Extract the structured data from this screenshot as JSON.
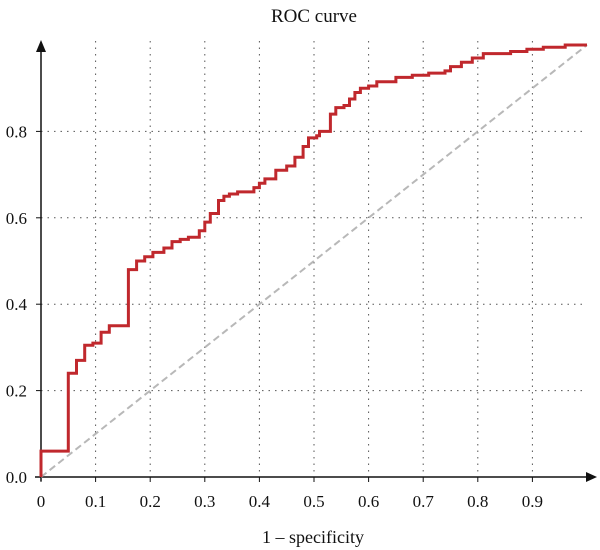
{
  "chart_data": {
    "type": "line",
    "title": "ROC curve",
    "xlabel": "1 – specificity",
    "ylabel": "",
    "xlim": [
      0,
      1
    ],
    "ylim": [
      0,
      1
    ],
    "x_ticks": [
      0,
      0.1,
      0.2,
      0.3,
      0.4,
      0.5,
      0.6,
      0.7,
      0.8,
      0.9
    ],
    "x_tick_labels": [
      "0",
      "0.1",
      "0.2",
      "0.3",
      "0.4",
      "0.5",
      "0.6",
      "0.7",
      "0.8",
      "0.9"
    ],
    "y_ticks": [
      0,
      0.2,
      0.4,
      0.6,
      0.8
    ],
    "y_tick_labels": [
      "0.0",
      "0.2",
      "0.4",
      "0.6",
      "0.8"
    ],
    "grid": true,
    "grid_style": "dotted",
    "series": [
      {
        "name": "",
        "color": "#c0282d",
        "style": "solid",
        "points": [
          [
            0,
            0
          ],
          [
            0,
            0.06
          ],
          [
            0.05,
            0.06
          ],
          [
            0.05,
            0.24
          ],
          [
            0.065,
            0.24
          ],
          [
            0.065,
            0.27
          ],
          [
            0.08,
            0.27
          ],
          [
            0.08,
            0.305
          ],
          [
            0.095,
            0.305
          ],
          [
            0.095,
            0.31
          ],
          [
            0.11,
            0.31
          ],
          [
            0.11,
            0.335
          ],
          [
            0.125,
            0.335
          ],
          [
            0.125,
            0.35
          ],
          [
            0.16,
            0.35
          ],
          [
            0.16,
            0.48
          ],
          [
            0.175,
            0.48
          ],
          [
            0.175,
            0.5
          ],
          [
            0.19,
            0.5
          ],
          [
            0.19,
            0.51
          ],
          [
            0.205,
            0.51
          ],
          [
            0.205,
            0.52
          ],
          [
            0.225,
            0.52
          ],
          [
            0.225,
            0.53
          ],
          [
            0.24,
            0.53
          ],
          [
            0.24,
            0.545
          ],
          [
            0.255,
            0.545
          ],
          [
            0.255,
            0.55
          ],
          [
            0.27,
            0.55
          ],
          [
            0.27,
            0.555
          ],
          [
            0.29,
            0.555
          ],
          [
            0.29,
            0.57
          ],
          [
            0.3,
            0.57
          ],
          [
            0.3,
            0.59
          ],
          [
            0.31,
            0.59
          ],
          [
            0.31,
            0.61
          ],
          [
            0.325,
            0.61
          ],
          [
            0.325,
            0.64
          ],
          [
            0.335,
            0.64
          ],
          [
            0.335,
            0.65
          ],
          [
            0.345,
            0.65
          ],
          [
            0.345,
            0.655
          ],
          [
            0.36,
            0.655
          ],
          [
            0.36,
            0.66
          ],
          [
            0.39,
            0.66
          ],
          [
            0.39,
            0.67
          ],
          [
            0.4,
            0.67
          ],
          [
            0.4,
            0.68
          ],
          [
            0.41,
            0.68
          ],
          [
            0.41,
            0.69
          ],
          [
            0.43,
            0.69
          ],
          [
            0.43,
            0.71
          ],
          [
            0.45,
            0.71
          ],
          [
            0.45,
            0.72
          ],
          [
            0.465,
            0.72
          ],
          [
            0.465,
            0.74
          ],
          [
            0.48,
            0.74
          ],
          [
            0.48,
            0.765
          ],
          [
            0.49,
            0.765
          ],
          [
            0.49,
            0.785
          ],
          [
            0.505,
            0.785
          ],
          [
            0.505,
            0.79
          ],
          [
            0.51,
            0.79
          ],
          [
            0.51,
            0.8
          ],
          [
            0.53,
            0.8
          ],
          [
            0.53,
            0.84
          ],
          [
            0.54,
            0.84
          ],
          [
            0.54,
            0.855
          ],
          [
            0.555,
            0.855
          ],
          [
            0.555,
            0.86
          ],
          [
            0.565,
            0.86
          ],
          [
            0.565,
            0.875
          ],
          [
            0.575,
            0.875
          ],
          [
            0.575,
            0.89
          ],
          [
            0.585,
            0.89
          ],
          [
            0.585,
            0.9
          ],
          [
            0.6,
            0.9
          ],
          [
            0.6,
            0.905
          ],
          [
            0.615,
            0.905
          ],
          [
            0.615,
            0.915
          ],
          [
            0.65,
            0.915
          ],
          [
            0.65,
            0.925
          ],
          [
            0.68,
            0.925
          ],
          [
            0.68,
            0.93
          ],
          [
            0.71,
            0.93
          ],
          [
            0.71,
            0.935
          ],
          [
            0.74,
            0.935
          ],
          [
            0.74,
            0.94
          ],
          [
            0.75,
            0.94
          ],
          [
            0.75,
            0.95
          ],
          [
            0.77,
            0.95
          ],
          [
            0.77,
            0.96
          ],
          [
            0.79,
            0.96
          ],
          [
            0.79,
            0.97
          ],
          [
            0.81,
            0.97
          ],
          [
            0.81,
            0.98
          ],
          [
            0.86,
            0.98
          ],
          [
            0.86,
            0.985
          ],
          [
            0.89,
            0.985
          ],
          [
            0.89,
            0.99
          ],
          [
            0.92,
            0.99
          ],
          [
            0.92,
            0.995
          ],
          [
            0.96,
            0.995
          ],
          [
            0.96,
            1.0
          ],
          [
            1.0,
            1.0
          ]
        ]
      },
      {
        "name": "",
        "color": "#b8b8b8",
        "style": "dashed",
        "points": [
          [
            0,
            0
          ],
          [
            1,
            1
          ]
        ]
      }
    ]
  }
}
